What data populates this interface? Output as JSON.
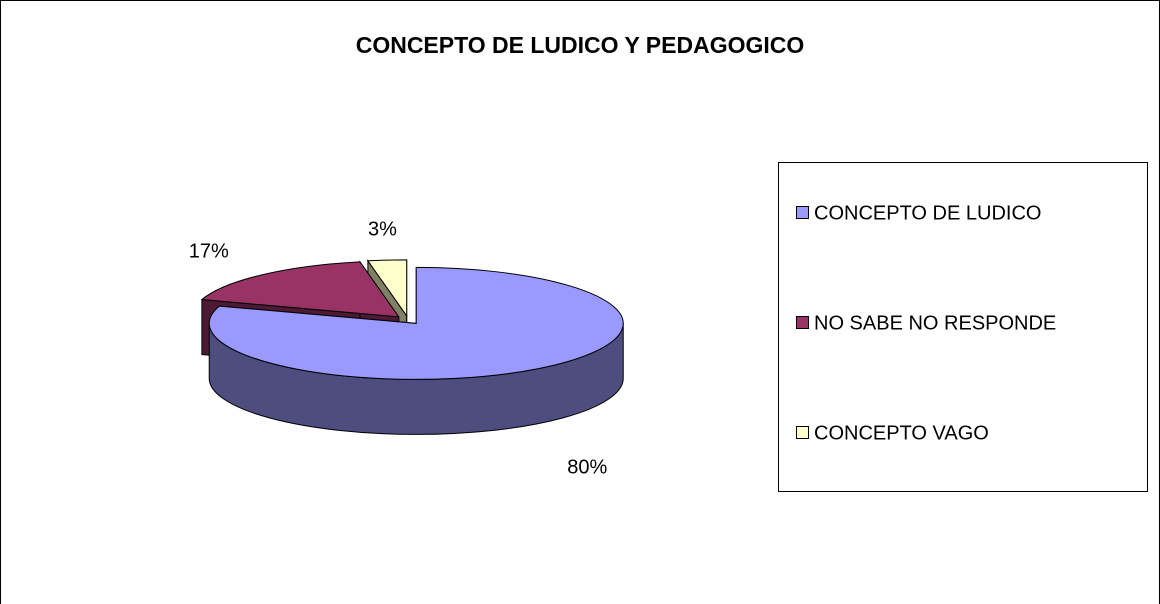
{
  "chart_data": {
    "type": "pie",
    "title": "CONCEPTO DE LUDICO Y PEDAGOGICO",
    "categories": [
      "CONCEPTO DE LUDICO",
      "NO SABE NO RESPONDE",
      "CONCEPTO VAGO"
    ],
    "values": [
      80,
      17,
      3
    ],
    "value_labels": [
      "80%",
      "17%",
      "3%"
    ],
    "colors": [
      "#9999ff",
      "#993366",
      "#ffffcc"
    ],
    "legend": "right"
  }
}
